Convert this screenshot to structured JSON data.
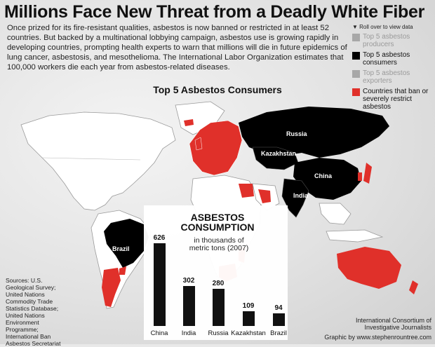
{
  "title": "Millions Face New Threat from a Deadly White Fiber",
  "intro": "Once prized for its fire-resistant qualities, asbestos is now banned or restricted in at least 52 countries. But backed by a multinational lobbying campaign, asbestos use is growing rapidly in developing countries, prompting health experts to warn that millions will die in future epidemics of lung cancer, asbestosis, and mesothelioma. The International Labor Organization estimates that 100,000 workers die each year from asbestos-related diseases.",
  "subtitle": "Top 5 Asbestos Consumers",
  "legend": {
    "hint": "▼ Roll over to view data",
    "items": [
      {
        "label": "Top 5 asbestos producers",
        "color": "#a8a8a8",
        "text_color": "#9a9a9a"
      },
      {
        "label": "Top 5 asbestos consumers",
        "color": "#000000",
        "text_color": "#111111"
      },
      {
        "label": "Top 5 asbestos exporters",
        "color": "#a8a8a8",
        "text_color": "#9a9a9a"
      },
      {
        "label": "Countries that ban or severely restrict asbestos",
        "color": "#e0302a",
        "text_color": "#111111"
      }
    ]
  },
  "map_labels": {
    "russia": "Russia",
    "kazakhstan": "Kazakhstan",
    "china": "China",
    "india": "India",
    "brazil": "Brazil"
  },
  "colors": {
    "consumer": "#000000",
    "ban": "#e0302a",
    "land": "#ffffff",
    "border": "#9a9a9a"
  },
  "chart_data": {
    "type": "bar",
    "title": "ASBESTOS CONSUMPTION",
    "subtitle": "in thousands of metric tons (2007)",
    "categories": [
      "China",
      "India",
      "Russia",
      "Kazakhstan",
      "Brazil"
    ],
    "values": [
      626,
      302,
      280,
      109,
      94
    ],
    "value_labels": [
      "626",
      "302",
      "280",
      "109",
      "94"
    ],
    "ylim": [
      0,
      626
    ]
  },
  "sources": "Sources: U.S. Geological Survey; United Nations Commodity Trade Statistics Database; United Nations Environment Programme; International Ban Asbestos Secretariat",
  "credit_org": "International Consortium of Investigative Journalists",
  "credit_graphic": "Graphic by www.stephenrountree.com"
}
